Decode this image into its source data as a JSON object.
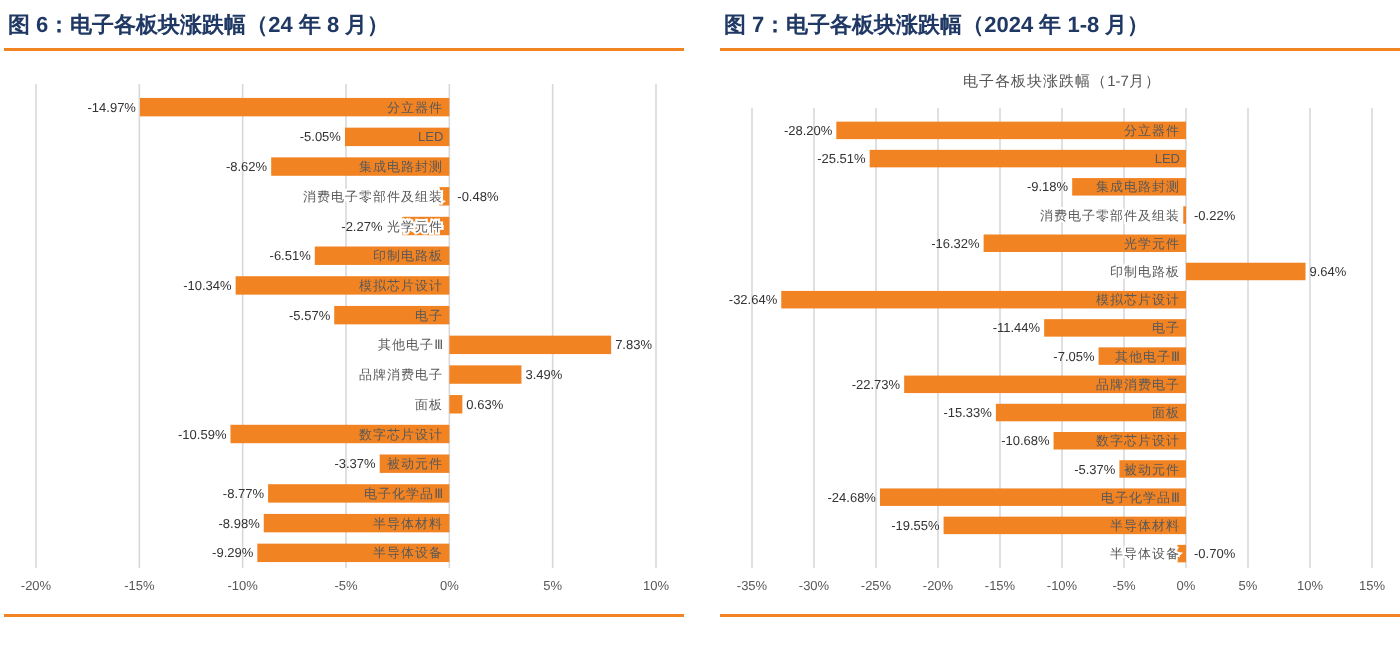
{
  "chart_data": [
    {
      "type": "bar",
      "orientation": "horizontal",
      "title": "图 6：电子各板块涨跌幅（24 年 8 月）",
      "categories": [
        "分立器件",
        "LED",
        "集成电路封测",
        "消费电子零部件及组装",
        "光学元件",
        "印制电路板",
        "模拟芯片设计",
        "电子",
        "其他电子Ⅲ",
        "品牌消费电子",
        "面板",
        "数字芯片设计",
        "被动元件",
        "电子化学品Ⅲ",
        "半导体材料",
        "半导体设备"
      ],
      "values": [
        -14.97,
        -5.05,
        -8.62,
        -0.48,
        -2.27,
        -6.51,
        -10.34,
        -5.57,
        7.83,
        3.49,
        0.63,
        -10.59,
        -3.37,
        -8.77,
        -8.98,
        -9.29
      ],
      "value_labels": [
        "-14.97%",
        "-5.05%",
        "-8.62%",
        "-0.48%",
        "-2.27%",
        "-6.51%",
        "-10.34%",
        "-5.57%",
        "7.83%",
        "3.49%",
        "0.63%",
        "-10.59%",
        "-3.37%",
        "-8.77%",
        "-8.98%",
        "-9.29%"
      ],
      "color": "#f28322",
      "xlim": [
        -20,
        10
      ],
      "xticks": [
        {
          "value": -20,
          "label": "-20%"
        },
        {
          "value": -15,
          "label": "-15%"
        },
        {
          "value": -10,
          "label": "-10%"
        },
        {
          "value": -5,
          "label": "-5%"
        },
        {
          "value": 0,
          "label": "0%"
        },
        {
          "value": 5,
          "label": "5%"
        },
        {
          "value": 10,
          "label": "10%"
        }
      ],
      "grid": "x"
    },
    {
      "type": "bar",
      "orientation": "horizontal",
      "title": "图 7：电子各板块涨跌幅（2024 年 1-8 月）",
      "subtitle": "电子各板块涨跌幅（1-7月）",
      "categories": [
        "分立器件",
        "LED",
        "集成电路封测",
        "消费电子零部件及组装",
        "光学元件",
        "印制电路板",
        "模拟芯片设计",
        "电子",
        "其他电子Ⅲ",
        "品牌消费电子",
        "面板",
        "数字芯片设计",
        "被动元件",
        "电子化学品Ⅲ",
        "半导体材料",
        "半导体设备"
      ],
      "values": [
        -28.2,
        -25.51,
        -9.18,
        -0.22,
        -16.32,
        9.64,
        -32.64,
        -11.44,
        -7.05,
        -22.73,
        -15.33,
        -10.68,
        -5.37,
        -24.68,
        -19.55,
        -0.7
      ],
      "value_labels": [
        "-28.20%",
        "-25.51%",
        "-9.18%",
        "-0.22%",
        "-16.32%",
        "9.64%",
        "-32.64%",
        "-11.44%",
        "-7.05%",
        "-22.73%",
        "-15.33%",
        "-10.68%",
        "-5.37%",
        "-24.68%",
        "-19.55%",
        "-0.70%"
      ],
      "color": "#f28322",
      "xlim": [
        -35,
        15
      ],
      "xticks": [
        {
          "value": -35,
          "label": "-35%"
        },
        {
          "value": -30,
          "label": "-30%"
        },
        {
          "value": -25,
          "label": "-25%"
        },
        {
          "value": -20,
          "label": "-20%"
        },
        {
          "value": -15,
          "label": "-15%"
        },
        {
          "value": -10,
          "label": "-10%"
        },
        {
          "value": -5,
          "label": "-5%"
        },
        {
          "value": 0,
          "label": "0%"
        },
        {
          "value": 5,
          "label": "5%"
        },
        {
          "value": 10,
          "label": "10%"
        },
        {
          "value": 15,
          "label": "15%"
        }
      ],
      "grid": "x"
    }
  ]
}
